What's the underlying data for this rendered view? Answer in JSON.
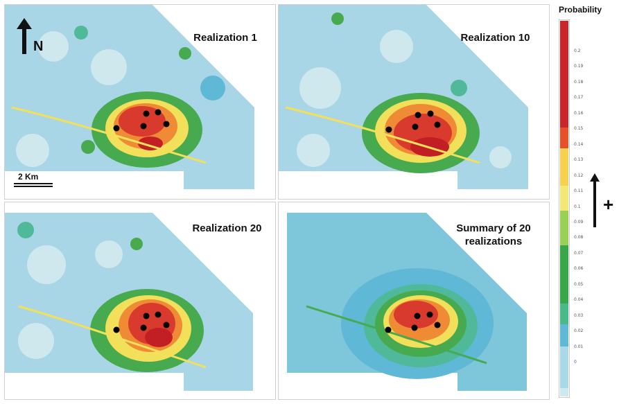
{
  "panels": [
    {
      "id": "p1",
      "title": "Realization 1"
    },
    {
      "id": "p2",
      "title": "Realization 10"
    },
    {
      "id": "p3",
      "title": "Realization 20"
    },
    {
      "id": "p4",
      "title": "Summary of 20 realizations"
    }
  ],
  "north_label": "N",
  "scale_label": "2 Km",
  "legend": {
    "title": "Probability",
    "ticks": [
      "0.2",
      "0.19",
      "0.18",
      "0.17",
      "0.16",
      "0.15",
      "0.14",
      "0.13",
      "0.12",
      "0.11",
      "0.1",
      "0.09",
      "0.08",
      "0.07",
      "0.06",
      "0.05",
      "0.04",
      "0.03",
      "0.02",
      "0.01",
      "0"
    ],
    "colors": [
      "#c8262a",
      "#e6502a",
      "#f5d14f",
      "#f2e876",
      "#9bd058",
      "#3aa64a",
      "#4ab98a",
      "#5fb8d6",
      "#a9d8e6",
      "#cfe8ee"
    ],
    "trend_symbol": "+"
  },
  "colors": {
    "low": "#cfe8ee",
    "light_blue": "#a9d6e6",
    "blue": "#5fb8d6",
    "teal": "#4fb99a",
    "green": "#48aa4e",
    "yellow": "#f2e05a",
    "orange": "#ef8a35",
    "red": "#d83a2e",
    "dark_red": "#c21f25"
  }
}
